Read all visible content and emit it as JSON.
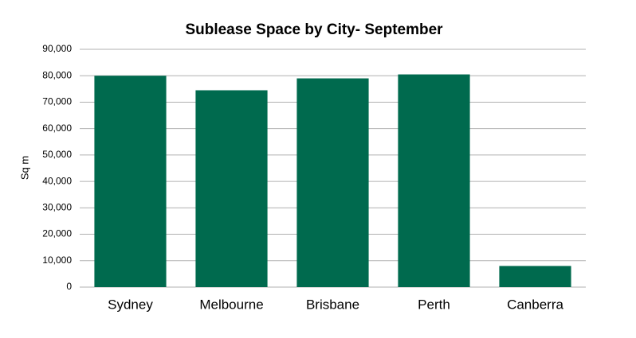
{
  "chart_data": {
    "type": "bar",
    "title": "Sublease  Space by City- September",
    "y_label": "Sq m",
    "categories": [
      "Sydney",
      "Melbourne",
      "Brisbane",
      "Perth",
      "Canberra"
    ],
    "values": [
      80000,
      74500,
      79000,
      80500,
      8000
    ],
    "color": "#006a4e",
    "ylim": [
      0,
      90000
    ],
    "yticks": [
      0,
      {
        "value": 10000,
        "label": "10,000"
      },
      {
        "value": 20000,
        "label": "20,000"
      },
      {
        "value": 30000,
        "label": "30,000"
      },
      {
        "value": 40000,
        "label": "40,000"
      },
      {
        "value": 50000,
        "label": "50,000"
      },
      {
        "value": 60000,
        "label": "60,000"
      },
      {
        "value": 70000,
        "label": "70,000"
      },
      {
        "value": 80000,
        "label": "80,000"
      },
      {
        "value": 90000,
        "label": "90,000"
      }
    ],
    "grid": true
  }
}
